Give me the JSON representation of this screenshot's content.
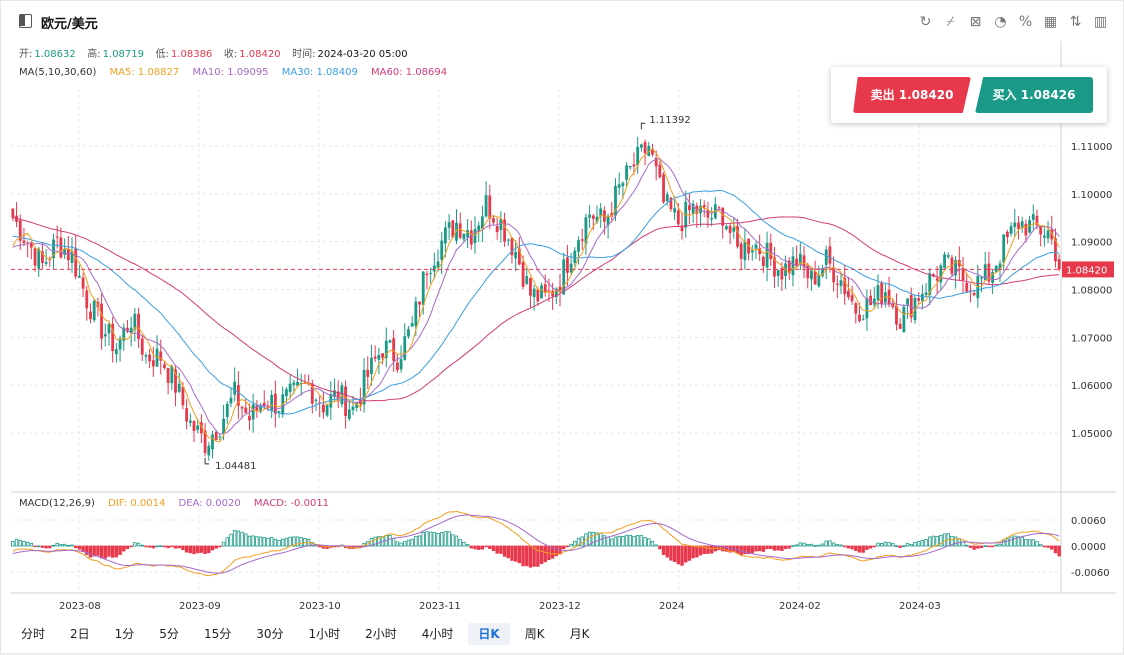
{
  "header": {
    "title": "欧元/美元",
    "tools": [
      "refresh-icon",
      "draw-icon",
      "indicator-icon",
      "pie-icon",
      "percent-icon",
      "grid-icon",
      "compare-icon",
      "panel-icon"
    ],
    "tool_glyphs": [
      "↻",
      "⌿",
      "⊠",
      "◔",
      "%",
      "▦",
      "⇅",
      "▥"
    ]
  },
  "ohlc": {
    "open_label": "开:",
    "open": "1.08632",
    "high_label": "高:",
    "high": "1.08719",
    "low_label": "低:",
    "low": "1.08386",
    "close_label": "收:",
    "close": "1.08420",
    "time_label": "时间:",
    "time": "2024-03-20 05:00"
  },
  "ma": {
    "label": "MA(5,10,30,60)",
    "ma5": "MA5: 1.08827",
    "ma10": "MA10: 1.09095",
    "ma30": "MA30: 1.08409",
    "ma60": "MA60: 1.08694"
  },
  "macd": {
    "label": "MACD(12,26,9)",
    "dif": "DIF: 0.0014",
    "dea": "DEA: 0.0020",
    "macd": "MACD: -0.0011"
  },
  "trade": {
    "sell": "卖出 1.08420",
    "buy": "买入 1.08426"
  },
  "tabs": [
    "分时",
    "2日",
    "1分",
    "5分",
    "15分",
    "30分",
    "1小时",
    "2小时",
    "4小时",
    "日K",
    "周K",
    "月K"
  ],
  "active_tab": "日K",
  "colors": {
    "up": "#1a9a86",
    "down": "#e8384c",
    "ma5": "#f0a020",
    "ma10": "#a46bc9",
    "ma30": "#3a9ee0",
    "ma60": "#d23c78"
  },
  "chart_data": {
    "type": "candlestick",
    "price_axis": {
      "min": 1.04,
      "max": 1.12,
      "ticks": [
        "1.05000",
        "1.06000",
        "1.07000",
        "1.08000",
        "1.09000",
        "1.10000",
        "1.11000"
      ]
    },
    "current_price": "1.08420",
    "x_ticks": [
      "2023-08",
      "2023-09",
      "2023-10",
      "2023-11",
      "2023-12",
      "2024",
      "2024-02",
      "2024-03"
    ],
    "annotations": {
      "high": "1.11392",
      "low": "1.04481"
    },
    "macd_axis": {
      "ticks": [
        "0.0060",
        "0.0000",
        "-0.0060"
      ]
    },
    "anchors": [
      [
        0,
        1.095
      ],
      [
        4,
        1.09
      ],
      [
        8,
        1.085
      ],
      [
        12,
        1.09
      ],
      [
        16,
        1.087
      ],
      [
        20,
        1.078
      ],
      [
        24,
        1.072
      ],
      [
        28,
        1.068
      ],
      [
        32,
        1.074
      ],
      [
        36,
        1.066
      ],
      [
        40,
        1.066
      ],
      [
        44,
        1.06
      ],
      [
        48,
        1.052
      ],
      [
        52,
        1.048
      ],
      [
        56,
        1.052
      ],
      [
        60,
        1.058
      ],
      [
        64,
        1.053
      ],
      [
        68,
        1.057
      ],
      [
        72,
        1.056
      ],
      [
        76,
        1.058
      ],
      [
        80,
        1.06
      ],
      [
        84,
        1.056
      ],
      [
        88,
        1.058
      ],
      [
        92,
        1.055
      ],
      [
        96,
        1.062
      ],
      [
        100,
        1.068
      ],
      [
        104,
        1.066
      ],
      [
        108,
        1.072
      ],
      [
        112,
        1.085
      ],
      [
        116,
        1.09
      ],
      [
        120,
        1.094
      ],
      [
        124,
        1.092
      ],
      [
        128,
        1.098
      ],
      [
        132,
        1.094
      ],
      [
        136,
        1.088
      ],
      [
        140,
        1.079
      ],
      [
        144,
        1.078
      ],
      [
        148,
        1.082
      ],
      [
        152,
        1.09
      ],
      [
        156,
        1.096
      ],
      [
        160,
        1.094
      ],
      [
        164,
        1.101
      ],
      [
        168,
        1.106
      ],
      [
        172,
        1.11
      ],
      [
        176,
        1.098
      ],
      [
        180,
        1.094
      ],
      [
        184,
        1.097
      ],
      [
        188,
        1.095
      ],
      [
        192,
        1.096
      ],
      [
        196,
        1.088
      ],
      [
        200,
        1.09
      ],
      [
        204,
        1.087
      ],
      [
        208,
        1.084
      ],
      [
        212,
        1.086
      ],
      [
        216,
        1.082
      ],
      [
        220,
        1.086
      ],
      [
        224,
        1.082
      ],
      [
        228,
        1.076
      ],
      [
        232,
        1.077
      ],
      [
        236,
        1.08
      ],
      [
        240,
        1.074
      ],
      [
        244,
        1.078
      ],
      [
        248,
        1.082
      ],
      [
        252,
        1.085
      ],
      [
        256,
        1.083
      ],
      [
        260,
        1.081
      ],
      [
        264,
        1.083
      ],
      [
        268,
        1.089
      ],
      [
        272,
        1.094
      ],
      [
        276,
        1.093
      ],
      [
        280,
        1.092
      ],
      [
        283,
        1.0862
      ]
    ]
  }
}
